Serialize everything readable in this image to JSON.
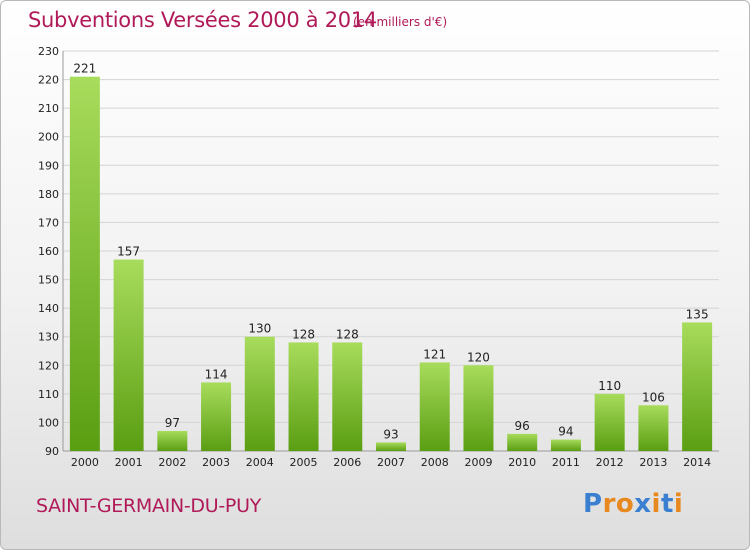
{
  "title": "Subventions Versées 2000 à 2014",
  "subtitle": "(en milliers d'€)",
  "commune": "SAINT-GERMAIN-DU-PUY",
  "logo": {
    "text": "Proxiti",
    "letters": [
      "P",
      "r",
      "o",
      "x",
      "i",
      "t",
      "i"
    ],
    "colors": [
      "#3a7fd0",
      "#e8891f",
      "#e8891f",
      "#3a7fd0",
      "#e8891f",
      "#3a7fd0",
      "#e8891f"
    ]
  },
  "colors": {
    "title": "#b01a58",
    "bar_top": "#a8dc5c",
    "bar_bottom": "#5a9e12",
    "grid": "#d4d4d4",
    "axis_text": "#222222"
  },
  "chart_data": {
    "type": "bar",
    "categories": [
      "2000",
      "2001",
      "2002",
      "2003",
      "2004",
      "2005",
      "2006",
      "2007",
      "2008",
      "2009",
      "2010",
      "2011",
      "2012",
      "2013",
      "2014"
    ],
    "values": [
      221,
      157,
      97,
      114,
      130,
      128,
      128,
      93,
      121,
      120,
      96,
      94,
      110,
      106,
      135
    ],
    "ylim": [
      90,
      230
    ],
    "yticks": [
      90,
      100,
      110,
      120,
      130,
      140,
      150,
      160,
      170,
      180,
      190,
      200,
      210,
      220,
      230
    ],
    "grid": true,
    "xlabel": "",
    "ylabel": ""
  }
}
